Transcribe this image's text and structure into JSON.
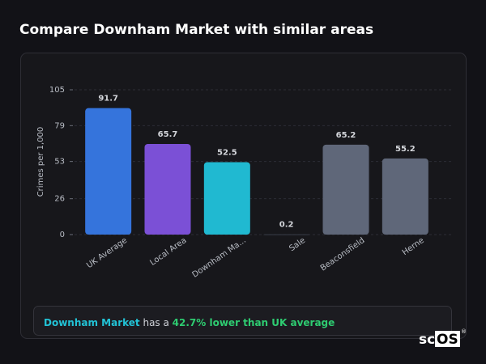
{
  "header": {
    "title": "Compare Downham Market with similar areas"
  },
  "chart_data": {
    "type": "bar",
    "categories": [
      "UK Average",
      "Local Area",
      "Downham Ma...",
      "Sale",
      "Beaconsfield",
      "Herne"
    ],
    "values": [
      91.7,
      65.7,
      52.5,
      0.2,
      65.2,
      55.2
    ],
    "colors": [
      "#3574dc",
      "#7b50d6",
      "#20b9d1",
      "#3a3e48",
      "#5f6779",
      "#5f6779"
    ],
    "y_label": "Crimes per 1,000",
    "ylim": [
      0,
      105
    ],
    "yticks": [
      0,
      26,
      53,
      79,
      105
    ],
    "grid": true
  },
  "summary": {
    "area": "Downham Market",
    "text": " has a ",
    "highlight": "42.7% lower than UK average"
  },
  "logo": {
    "text1": "sc",
    "text2": "OS",
    "mark": "®"
  }
}
